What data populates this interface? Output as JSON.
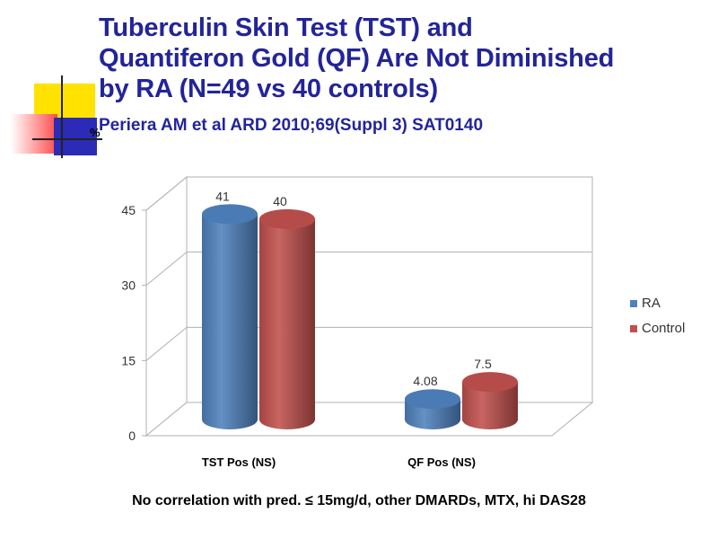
{
  "title_lines": [
    "Tuberculin Skin Test (TST) and",
    "Quantiferon Gold (QF) Are Not Diminished",
    "by RA (N=49 vs 40 controls)"
  ],
  "subtitle": "Periera AM et al ARD 2010;69(Suppl 3) SAT0140",
  "footnote": "No correlation with pred. ≤ 15mg/d, other DMARDs, MTX, hi DAS28",
  "colors": {
    "title": "#23249a",
    "ra": "#4f81bd",
    "control": "#c0504d",
    "deco_yellow": "#ffe200",
    "deco_blue": "#2b2bb8",
    "deco_red": "#ff4b4b"
  },
  "chart_data": {
    "type": "bar",
    "ylabel": "%",
    "ylim": [
      0,
      45
    ],
    "yticks": [
      "0",
      "15",
      "30",
      "45"
    ],
    "categories": [
      "TST Pos (NS)",
      "QF Pos (NS)"
    ],
    "series": [
      {
        "name": "RA",
        "values": [
          41,
          4.08
        ],
        "labels": [
          "41",
          "4.08"
        ],
        "color": "#4f81bd"
      },
      {
        "name": "Control",
        "values": [
          40,
          7.5
        ],
        "labels": [
          "40",
          "7.5"
        ],
        "color": "#c0504d"
      }
    ],
    "legend": "right",
    "grid": true,
    "style": "3d-cylinder"
  }
}
